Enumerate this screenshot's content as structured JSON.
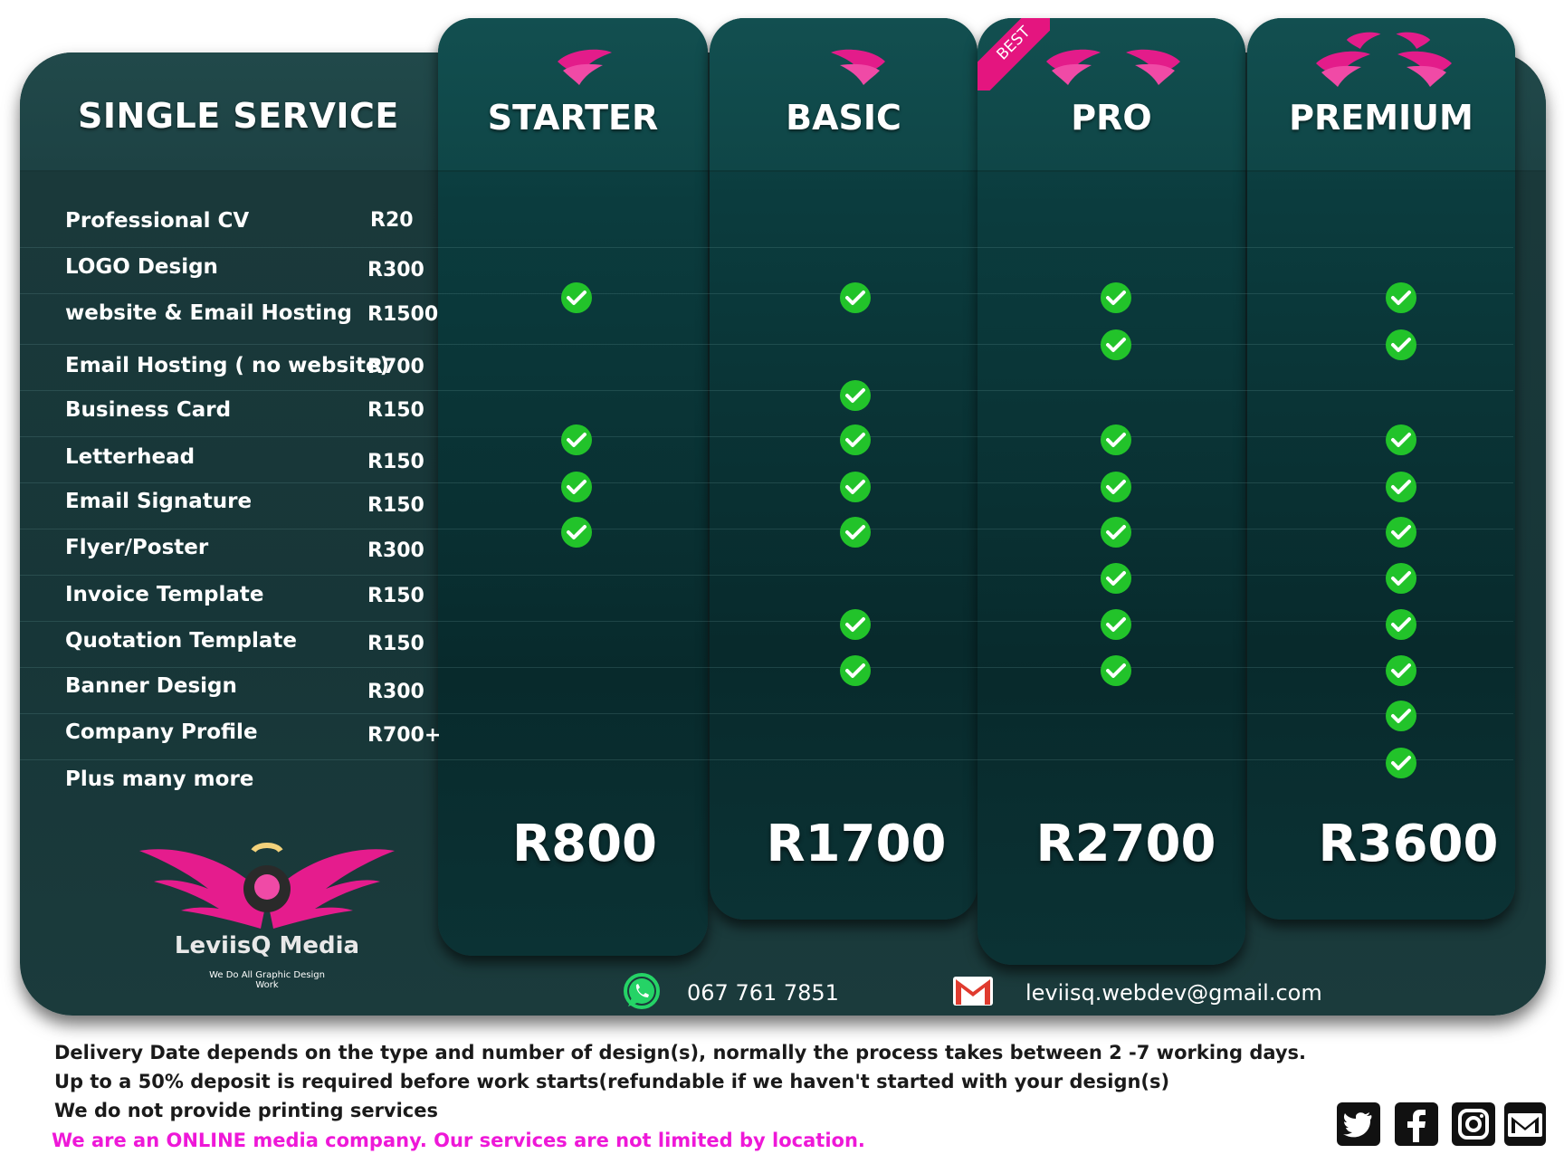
{
  "header": {
    "single_title": "SINGLE SERVICE",
    "badge": "BEST",
    "plans": [
      {
        "name": "STARTER",
        "price": "R800"
      },
      {
        "name": "BASIC",
        "price": "R1700"
      },
      {
        "name": "PRO",
        "price": "R2700"
      },
      {
        "name": "PREMIUM",
        "price": "R3600"
      }
    ]
  },
  "services": [
    {
      "name": "Professional CV",
      "price": "R20",
      "plans": [
        false,
        false,
        false,
        false
      ]
    },
    {
      "name": "LOGO Design",
      "price": "R300",
      "plans": [
        true,
        true,
        true,
        true
      ]
    },
    {
      "name": "website & Email Hosting",
      "price": "R1500",
      "plans": [
        false,
        false,
        true,
        true
      ]
    },
    {
      "name": "Email Hosting ( no website)",
      "price": "R700",
      "plans": [
        false,
        true,
        false,
        false
      ]
    },
    {
      "name": "Business Card",
      "price": "R150",
      "plans": [
        true,
        true,
        true,
        true
      ]
    },
    {
      "name": "Letterhead",
      "price": "R150",
      "plans": [
        true,
        true,
        true,
        true
      ]
    },
    {
      "name": "Email Signature",
      "price": "R150",
      "plans": [
        true,
        true,
        true,
        true
      ]
    },
    {
      "name": "Flyer/Poster",
      "price": "R300",
      "plans": [
        false,
        false,
        true,
        true
      ]
    },
    {
      "name": "Invoice Template",
      "price": "R150",
      "plans": [
        false,
        true,
        true,
        true
      ]
    },
    {
      "name": "Quotation Template",
      "price": "R150",
      "plans": [
        false,
        true,
        true,
        true
      ]
    },
    {
      "name": "Banner Design",
      "price": "R300",
      "plans": [
        false,
        false,
        false,
        true
      ]
    },
    {
      "name": "Company Profile",
      "price": "R700+",
      "plans": [
        false,
        false,
        false,
        true
      ]
    },
    {
      "name": "Plus many more",
      "price": "",
      "plans": [
        false,
        false,
        false,
        false
      ]
    }
  ],
  "brand": {
    "name": "LeviisQ Media",
    "tagline": "We Do All Graphic Design Work"
  },
  "contact": {
    "phone": "067 761 7851",
    "email": "leviisq.webdev@gmail.com",
    "whatsapp_icon": "whatsapp-icon",
    "mail_icon": "gmail-icon"
  },
  "footer": {
    "line1": "Delivery Date depends on the type and number of design(s), normally the process takes between 2 -7 working days.",
    "line2": "Up to a 50% deposit is required before work starts(refundable if we haven't started with your design(s)",
    "line3": "We do not provide printing services",
    "line4": "We are an ONLINE media company. Our services are not limited by location."
  },
  "social_icons": [
    "twitter-icon",
    "facebook-icon",
    "instagram-icon",
    "mail-icon"
  ],
  "colors": {
    "accent_pink": "#e4157f",
    "check_green": "#22c32a",
    "footer_pink": "#ee18d8",
    "panel": "#1b3a3b"
  }
}
